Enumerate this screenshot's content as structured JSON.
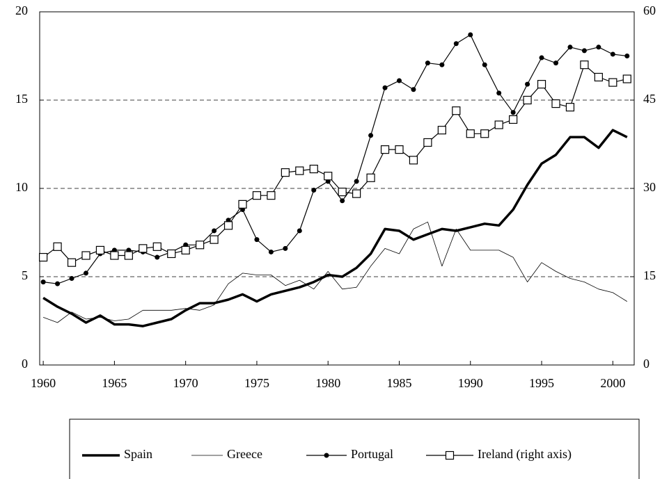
{
  "chart_data": {
    "type": "line",
    "x": [
      1960,
      1961,
      1962,
      1963,
      1964,
      1965,
      1966,
      1967,
      1968,
      1969,
      1970,
      1971,
      1972,
      1973,
      1974,
      1975,
      1976,
      1977,
      1978,
      1979,
      1980,
      1981,
      1982,
      1983,
      1984,
      1985,
      1986,
      1987,
      1988,
      1989,
      1990,
      1991,
      1992,
      1993,
      1994,
      1995,
      1996,
      1997,
      1998,
      1999,
      2000,
      2001
    ],
    "xlim": [
      1959.75,
      2001.5
    ],
    "xticks": [
      1960,
      1965,
      1970,
      1975,
      1980,
      1985,
      1990,
      1995,
      2000
    ],
    "ylim": [
      0,
      20
    ],
    "yticks": [
      0,
      5,
      10,
      15,
      20
    ],
    "y2lim": [
      0,
      60
    ],
    "y2ticks": [
      0,
      15,
      30,
      45,
      60
    ],
    "grid": true,
    "series": [
      {
        "name": "Spain",
        "color": "#000000",
        "width": 3.5,
        "marker": "none",
        "values": [
          3.8,
          3.3,
          2.9,
          2.4,
          2.8,
          2.3,
          2.3,
          2.2,
          2.4,
          2.6,
          3.1,
          3.5,
          3.5,
          3.7,
          4.0,
          3.6,
          4.0,
          4.2,
          4.4,
          4.7,
          5.1,
          5.0,
          5.5,
          6.3,
          7.7,
          7.6,
          7.1,
          7.4,
          7.7,
          7.6,
          7.8,
          8.0,
          7.9,
          8.8,
          10.2,
          11.4,
          11.9,
          12.9,
          12.9,
          12.3,
          13.3,
          12.9
        ]
      },
      {
        "name": "Greece",
        "color": "#000000",
        "width": 0.8,
        "marker": "none",
        "values": [
          2.7,
          2.4,
          3.0,
          2.6,
          2.7,
          2.5,
          2.6,
          3.1,
          3.1,
          3.1,
          3.2,
          3.1,
          3.4,
          4.6,
          5.2,
          5.1,
          5.1,
          4.5,
          4.8,
          4.3,
          5.3,
          4.3,
          4.4,
          5.6,
          6.6,
          6.3,
          7.7,
          8.1,
          5.6,
          7.7,
          6.5,
          6.5,
          6.5,
          6.1,
          4.7,
          5.8,
          5.3,
          4.9,
          4.7,
          4.3,
          4.1,
          3.6
        ]
      },
      {
        "name": "Portugal",
        "color": "#000000",
        "width": 1.2,
        "marker": "dot",
        "values": [
          4.7,
          4.6,
          4.9,
          5.2,
          6.3,
          6.5,
          6.5,
          6.4,
          6.1,
          6.4,
          6.8,
          6.8,
          7.6,
          8.2,
          8.8,
          7.1,
          6.4,
          6.6,
          7.6,
          9.9,
          10.4,
          9.3,
          10.4,
          13.0,
          15.7,
          16.1,
          15.6,
          17.1,
          17.0,
          18.2,
          18.7,
          17.0,
          15.4,
          14.3,
          15.9,
          17.4,
          17.1,
          18.0,
          17.8,
          18.0,
          17.6,
          17.5
        ]
      },
      {
        "name": "Ireland (right axis)",
        "color": "#000000",
        "width": 1.2,
        "marker": "square",
        "axis": "y2",
        "values": [
          18.3,
          20.1,
          17.4,
          18.6,
          19.5,
          18.6,
          18.6,
          19.8,
          20.1,
          18.9,
          19.5,
          20.4,
          21.3,
          23.7,
          27.3,
          28.8,
          28.8,
          32.7,
          33.0,
          33.3,
          32.1,
          29.4,
          29.1,
          31.8,
          36.6,
          36.6,
          34.8,
          37.8,
          39.9,
          43.2,
          39.3,
          39.3,
          40.8,
          41.7,
          45.0,
          47.7,
          44.4,
          43.8,
          51.0,
          48.9,
          48.0,
          48.6
        ]
      }
    ]
  }
}
